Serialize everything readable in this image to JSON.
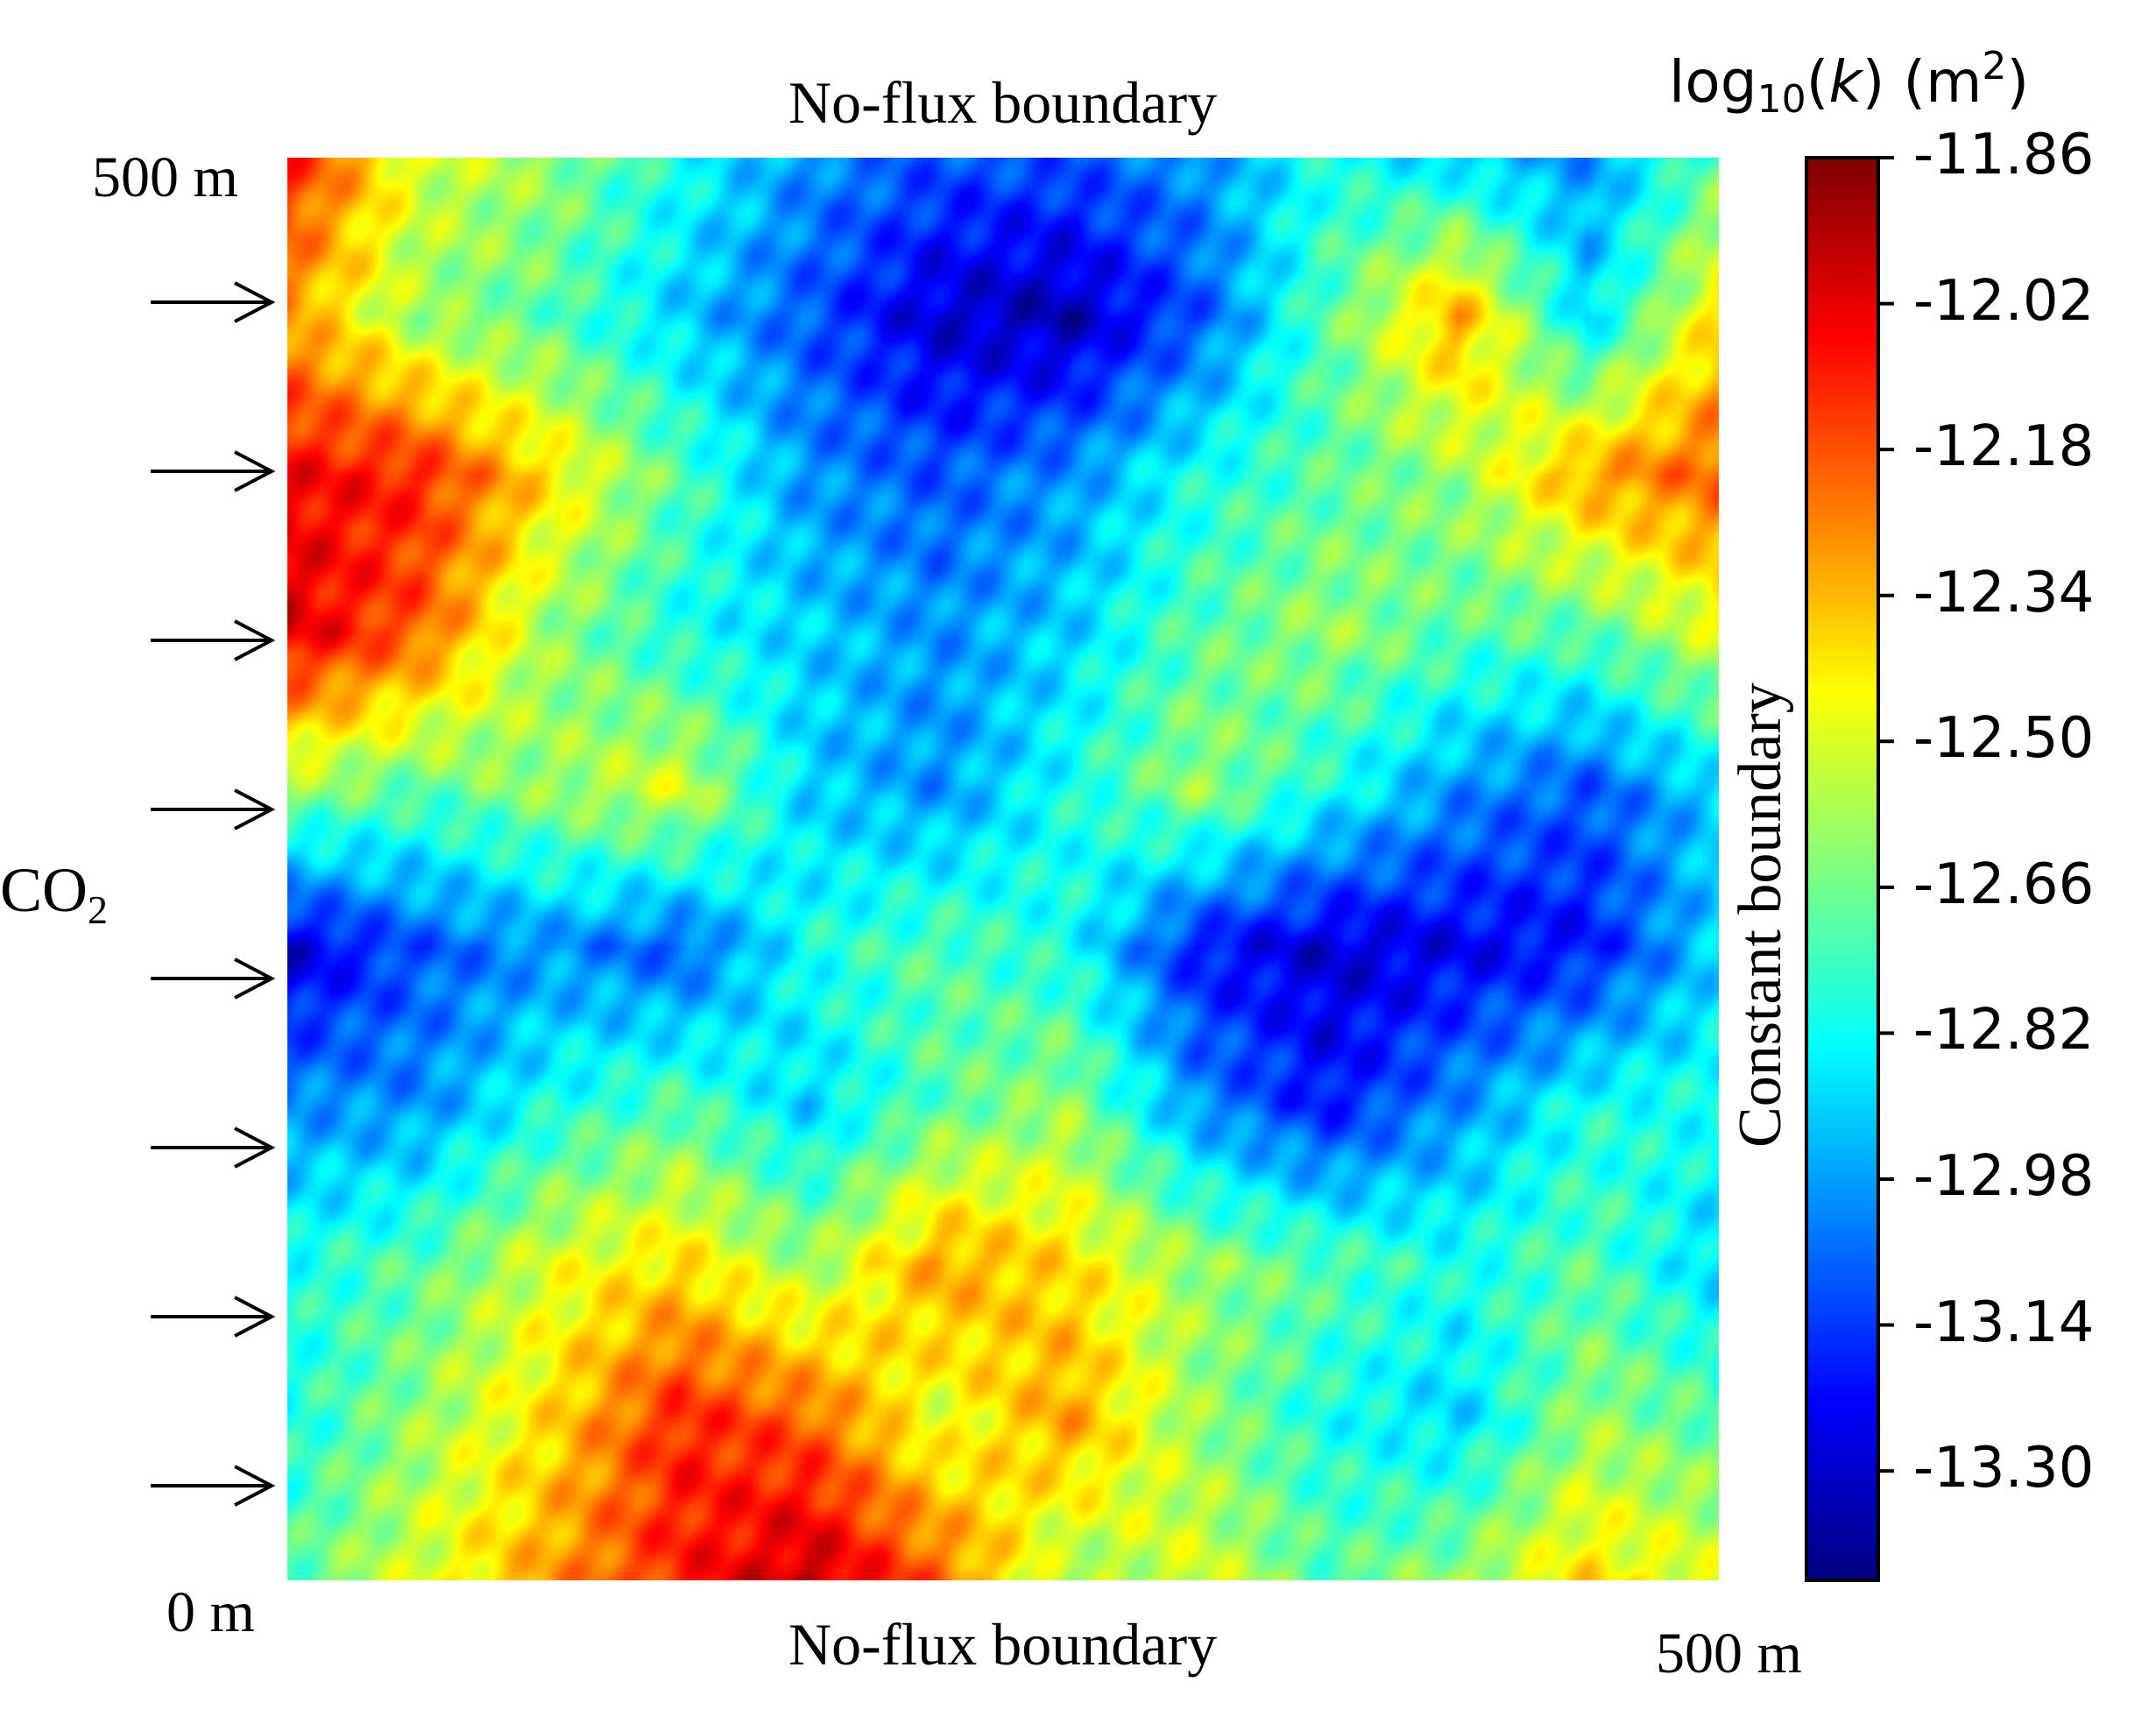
{
  "chart_data": {
    "type": "heatmap",
    "title_top": "No-flux boundary",
    "title_bottom": "No-flux boundary",
    "right_boundary_label": "Constant boundary",
    "inflow_label": "CO",
    "inflow_label_subscript": "2",
    "x_axis": {
      "labels": [
        "0 m",
        "500 m"
      ],
      "range": [
        0,
        500
      ],
      "unit": "m"
    },
    "y_axis": {
      "labels": [
        "0 m",
        "500 m"
      ],
      "range": [
        0,
        500
      ],
      "unit": "m"
    },
    "inflow_arrows": {
      "count": 8,
      "direction": "right",
      "side": "left"
    },
    "colorbar": {
      "label_prefix": "log",
      "label_sub": "10",
      "label_mid": "(",
      "label_var": "k",
      "label_mid2": ") (m",
      "label_sup": "2",
      "label_end": ")",
      "colormap": "jet",
      "vmin": -13.42,
      "vmax": -11.86,
      "ticks": [
        "-11.86",
        "-12.02",
        "-12.18",
        "-12.34",
        "-12.50",
        "-12.66",
        "-12.82",
        "-12.98",
        "-13.14",
        "-13.30"
      ]
    },
    "field": {
      "description_grid_rows_top_to_bottom": 10,
      "grid_cols_left_to_right": 12,
      "values": [
        [
          -12.1,
          -12.5,
          -12.6,
          -12.8,
          -13.0,
          -13.1,
          -13.1,
          -13.0,
          -12.8,
          -12.9,
          -13.0,
          -12.7
        ],
        [
          -12.3,
          -12.6,
          -12.7,
          -12.9,
          -13.1,
          -13.3,
          -13.35,
          -13.1,
          -12.7,
          -12.3,
          -12.9,
          -12.4
        ],
        [
          -12.05,
          -12.1,
          -12.4,
          -12.7,
          -13.0,
          -13.1,
          -13.0,
          -12.8,
          -12.7,
          -12.6,
          -12.3,
          -12.2
        ],
        [
          -12.0,
          -12.2,
          -12.6,
          -12.8,
          -12.9,
          -13.0,
          -12.9,
          -12.7,
          -12.6,
          -12.7,
          -12.7,
          -12.5
        ],
        [
          -12.6,
          -12.7,
          -12.6,
          -12.5,
          -12.9,
          -13.0,
          -12.8,
          -12.6,
          -12.8,
          -13.0,
          -13.1,
          -12.9
        ],
        [
          -13.3,
          -13.1,
          -13.0,
          -13.1,
          -12.8,
          -12.7,
          -12.8,
          -13.2,
          -13.3,
          -13.25,
          -13.2,
          -12.9
        ],
        [
          -13.0,
          -13.0,
          -12.8,
          -12.7,
          -12.9,
          -12.7,
          -12.6,
          -13.0,
          -13.2,
          -13.0,
          -12.8,
          -12.8
        ],
        [
          -12.8,
          -12.7,
          -12.5,
          -12.4,
          -12.6,
          -12.3,
          -12.4,
          -12.6,
          -12.7,
          -12.8,
          -12.7,
          -12.9
        ],
        [
          -12.8,
          -12.6,
          -12.4,
          -12.1,
          -12.2,
          -12.5,
          -12.3,
          -12.6,
          -12.8,
          -12.9,
          -12.6,
          -12.7
        ],
        [
          -12.7,
          -12.5,
          -12.3,
          -12.1,
          -11.95,
          -12.2,
          -12.6,
          -12.5,
          -12.7,
          -12.6,
          -12.4,
          -12.5
        ]
      ]
    }
  }
}
